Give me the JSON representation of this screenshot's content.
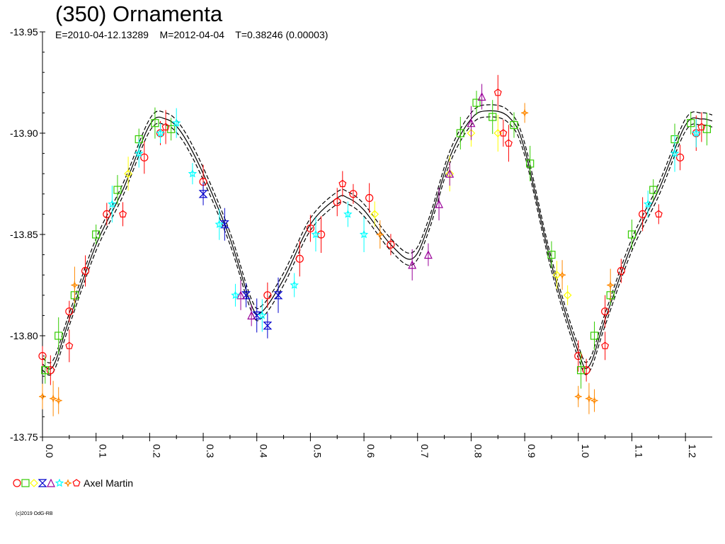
{
  "header": {
    "title": "(350) Ornamenta",
    "subtitle": "E=2010-04-12.13289    M=2012-04-04    T=0.38246 (0.00003)"
  },
  "footer": {
    "copyright": "(c)2019 OdG-RB"
  },
  "legend": {
    "label": "Axel Martin",
    "markers": [
      {
        "shape": "circle",
        "color": "#ff0000"
      },
      {
        "shape": "square",
        "color": "#33cc00"
      },
      {
        "shape": "diamond",
        "color": "#ffff00"
      },
      {
        "shape": "hourglass",
        "color": "#0000cc"
      },
      {
        "shape": "triangle",
        "color": "#990099"
      },
      {
        "shape": "star",
        "color": "#00ffff"
      },
      {
        "shape": "sparkle",
        "color": "#ff8800"
      },
      {
        "shape": "pentagon",
        "color": "#ff0000"
      }
    ]
  },
  "chart_data": {
    "type": "scatter",
    "title": "(350) Ornamenta",
    "subtitle": "E=2010-04-12.13289    M=2012-04-04    T=0.38246 (0.00003)",
    "xlabel": "",
    "ylabel": "",
    "xlim": [
      0.0,
      1.25
    ],
    "ylim": [
      -13.95,
      -13.75
    ],
    "y_inverted": true,
    "x_ticks": [
      0.0,
      0.1,
      0.2,
      0.3,
      0.4,
      0.5,
      0.6,
      0.7,
      0.8,
      0.9,
      1.0,
      1.1,
      1.2
    ],
    "x_tick_labels": [
      "0.0",
      "0.1",
      "0.2",
      "0.3",
      "0.4",
      "0.5",
      "0.6",
      "0.7",
      "0.8",
      "0.9",
      "1.0",
      "1.1",
      "1.2"
    ],
    "y_ticks": [
      -13.95,
      -13.9,
      -13.85,
      -13.8,
      -13.75
    ],
    "y_tick_labels": [
      "-13.95",
      "-13.90",
      "-13.85",
      "-13.80",
      "-13.75"
    ],
    "grid": false,
    "legend_position": "bottom-left",
    "fit_curve": {
      "x": [
        0.0,
        0.02,
        0.05,
        0.1,
        0.15,
        0.2,
        0.23,
        0.26,
        0.3,
        0.35,
        0.39,
        0.41,
        0.45,
        0.5,
        0.55,
        0.57,
        0.6,
        0.65,
        0.69,
        0.72,
        0.76,
        0.8,
        0.83,
        0.87,
        0.9,
        0.95,
        1.0,
        1.02,
        1.05,
        1.1,
        1.15,
        1.2,
        1.23,
        1.25
      ],
      "y": [
        -13.786,
        -13.785,
        -13.808,
        -13.845,
        -13.872,
        -13.904,
        -13.907,
        -13.9,
        -13.88,
        -13.848,
        -13.815,
        -13.812,
        -13.828,
        -13.855,
        -13.868,
        -13.868,
        -13.862,
        -13.845,
        -13.838,
        -13.854,
        -13.888,
        -13.907,
        -13.911,
        -13.908,
        -13.892,
        -13.835,
        -13.792,
        -13.785,
        -13.808,
        -13.845,
        -13.872,
        -13.904,
        -13.907,
        -13.906
      ]
    },
    "series": [
      {
        "name": "Axel Martin",
        "marker": "circle",
        "color": "#ff0000",
        "x": [
          0.0,
          0.015,
          0.05,
          0.08,
          0.12,
          0.19,
          0.22,
          0.3,
          0.42,
          0.48,
          0.5,
          0.52,
          0.55,
          0.58,
          0.61,
          0.65,
          1.0,
          1.015,
          1.05,
          1.08,
          1.12,
          1.19,
          1.22
        ],
        "y": [
          -13.79,
          -13.783,
          -13.812,
          -13.832,
          -13.86,
          -13.888,
          -13.9,
          -13.876,
          -13.82,
          -13.838,
          -13.853,
          -13.85,
          -13.866,
          -13.87,
          -13.868,
          -13.845,
          -13.79,
          -13.783,
          -13.812,
          -13.832,
          -13.86,
          -13.888,
          -13.9
        ]
      },
      {
        "name": "Axel Martin",
        "marker": "square",
        "color": "#33cc00",
        "x": [
          0.005,
          0.03,
          0.06,
          0.1,
          0.14,
          0.18,
          0.21,
          0.24,
          0.78,
          0.81,
          0.84,
          0.88,
          0.91,
          0.95,
          1.005,
          1.03,
          1.06,
          1.1,
          1.14,
          1.18,
          1.21,
          1.24
        ],
        "y": [
          -13.783,
          -13.8,
          -13.82,
          -13.85,
          -13.872,
          -13.897,
          -13.905,
          -13.902,
          -13.9,
          -13.915,
          -13.908,
          -13.904,
          -13.885,
          -13.84,
          -13.783,
          -13.8,
          -13.82,
          -13.85,
          -13.872,
          -13.897,
          -13.905,
          -13.902
        ]
      },
      {
        "name": "Axel Martin",
        "marker": "diamond",
        "color": "#ffff00",
        "x": [
          0.16,
          0.62,
          0.76,
          0.8,
          0.85,
          0.96,
          0.98
        ],
        "y": [
          -13.88,
          -13.86,
          -13.88,
          -13.9,
          -13.9,
          -13.83,
          -13.82
        ]
      },
      {
        "name": "Axel Martin",
        "marker": "hourglass",
        "color": "#0000cc",
        "x": [
          0.3,
          0.34,
          0.38,
          0.4,
          0.42,
          0.44
        ],
        "y": [
          -13.87,
          -13.855,
          -13.82,
          -13.81,
          -13.805,
          -13.82
        ]
      },
      {
        "name": "Axel Martin",
        "marker": "triangle",
        "color": "#990099",
        "x": [
          0.37,
          0.39,
          0.69,
          0.72,
          0.74,
          0.76,
          0.8,
          0.82
        ],
        "y": [
          -13.82,
          -13.81,
          -13.835,
          -13.84,
          -13.865,
          -13.88,
          -13.905,
          -13.918
        ]
      },
      {
        "name": "Axel Martin",
        "marker": "star",
        "color": "#00ffff",
        "x": [
          0.13,
          0.18,
          0.22,
          0.25,
          0.28,
          0.33,
          0.36,
          0.41,
          0.47,
          0.51,
          0.57,
          0.6,
          1.13,
          1.18,
          1.22
        ],
        "y": [
          -13.865,
          -13.89,
          -13.9,
          -13.905,
          -13.88,
          -13.855,
          -13.82,
          -13.81,
          -13.825,
          -13.85,
          -13.86,
          -13.85,
          -13.865,
          -13.89,
          -13.9
        ]
      },
      {
        "name": "Axel Martin",
        "marker": "sparkle",
        "color": "#ff8800",
        "x": [
          0.0,
          0.02,
          0.03,
          0.06,
          0.63,
          0.9,
          0.97,
          1.0,
          1.02,
          1.03,
          1.06
        ],
        "y": [
          -13.77,
          -13.769,
          -13.768,
          -13.825,
          -13.85,
          -13.91,
          -13.83,
          -13.77,
          -13.769,
          -13.768,
          -13.825
        ]
      },
      {
        "name": "Axel Martin",
        "marker": "pentagon",
        "color": "#ff0000",
        "x": [
          0.05,
          0.15,
          0.23,
          0.56,
          0.85,
          0.86,
          0.87,
          1.05,
          1.15,
          1.23
        ],
        "y": [
          -13.795,
          -13.86,
          -13.903,
          -13.875,
          -13.92,
          -13.9,
          -13.895,
          -13.795,
          -13.86,
          -13.903
        ]
      }
    ]
  }
}
